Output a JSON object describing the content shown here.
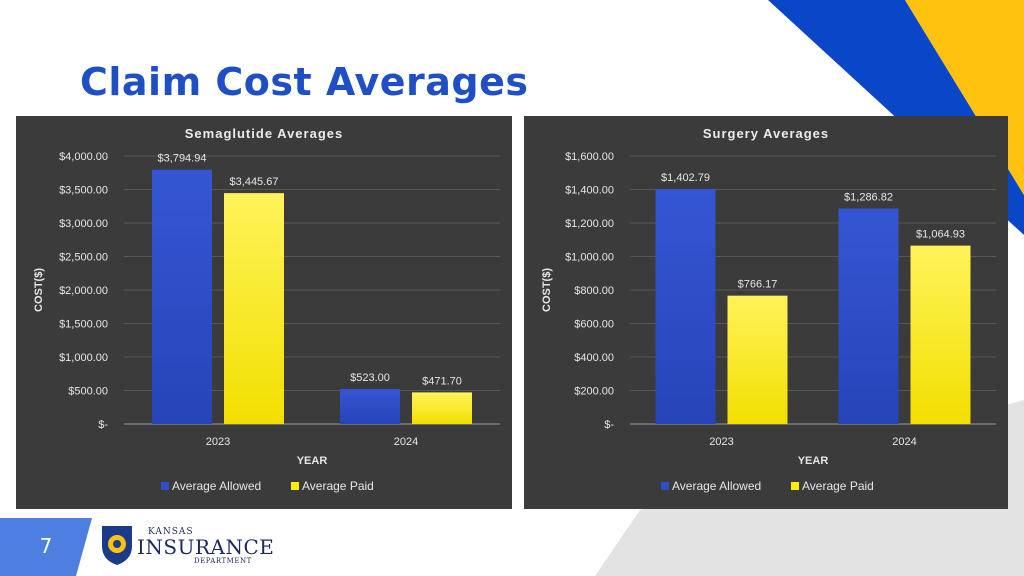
{
  "slide": {
    "title": "Claim Cost Averages",
    "page_number": "7"
  },
  "logo": {
    "line1": "Kansas",
    "line2": "Insurance",
    "line3": "Department"
  },
  "colors": {
    "title": "#1f4fc4",
    "accent_blue": "#0a46c8",
    "accent_yellow": "#ffc20e",
    "allowed": "#2f4fc9",
    "paid": "#ffee00",
    "chart_bg": "#3b3b3b"
  },
  "chart_data": [
    {
      "type": "bar",
      "title": "Semaglutide Averages",
      "xlabel": "YEAR",
      "ylabel": "COST($)",
      "ylim": [
        0,
        4000
      ],
      "yticks": [
        0,
        500,
        1000,
        1500,
        2000,
        2500,
        3000,
        3500,
        4000
      ],
      "ytick_labels": [
        "$-",
        "$500.00",
        "$1,000.00",
        "$1,500.00",
        "$2,000.00",
        "$2,500.00",
        "$3,000.00",
        "$3,500.00",
        "$4,000.00"
      ],
      "categories": [
        "2023",
        "2024"
      ],
      "series": [
        {
          "name": "Average Allowed",
          "color": "#2f4fc9",
          "values": [
            3794.94,
            523.0
          ],
          "labels": [
            "$3,794.94",
            "$523.00"
          ]
        },
        {
          "name": "Average Paid",
          "color": "#ffee00",
          "values": [
            3445.67,
            471.7
          ],
          "labels": [
            "$3,445.67",
            "$471.70"
          ]
        }
      ],
      "legend": "bottom"
    },
    {
      "type": "bar",
      "title": "Surgery Averages",
      "xlabel": "YEAR",
      "ylabel": "COST($)",
      "ylim": [
        0,
        1600
      ],
      "yticks": [
        0,
        200,
        400,
        600,
        800,
        1000,
        1200,
        1400,
        1600
      ],
      "ytick_labels": [
        "$-",
        "$200.00",
        "$400.00",
        "$600.00",
        "$800.00",
        "$1,000.00",
        "$1,200.00",
        "$1,400.00",
        "$1,600.00"
      ],
      "categories": [
        "2023",
        "2024"
      ],
      "series": [
        {
          "name": "Average Allowed",
          "color": "#2f4fc9",
          "values": [
            1402.79,
            1286.82
          ],
          "labels": [
            "$1,402.79",
            "$1,286.82"
          ]
        },
        {
          "name": "Average Paid",
          "color": "#ffee00",
          "values": [
            766.17,
            1064.93
          ],
          "labels": [
            "$766.17",
            "$1,064.93"
          ]
        }
      ],
      "legend": "bottom"
    }
  ]
}
